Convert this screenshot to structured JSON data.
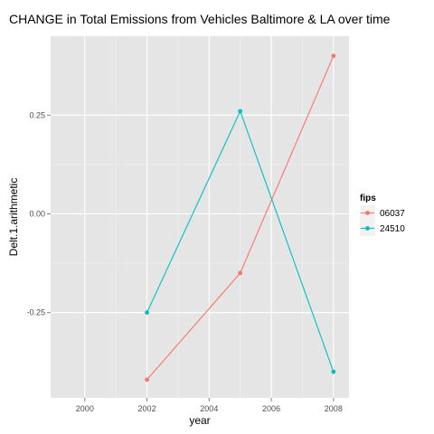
{
  "chart_data": {
    "type": "line",
    "title": "CHANGE in Total Emissions from Vehicles Baltimore & LA over time",
    "xlabel": "year",
    "ylabel": "Delt.1.arithmetic",
    "x": [
      2002,
      2005,
      2008
    ],
    "xlim": [
      1998.9,
      2008.5
    ],
    "ylim": [
      -0.466,
      0.45
    ],
    "x_ticks": [
      2000,
      2002,
      2004,
      2006,
      2008
    ],
    "y_ticks": [
      -0.25,
      0,
      0.25
    ],
    "y_tick_labels": [
      "-0.25",
      "0.00",
      "0.25"
    ],
    "grid": true,
    "legend": {
      "title": "fips",
      "placement": "right"
    },
    "series": [
      {
        "name": "06037",
        "color": "#F8766D",
        "values": [
          -0.42,
          -0.15,
          0.4
        ]
      },
      {
        "name": "24510",
        "color": "#00BFC4",
        "values": [
          -0.25,
          0.26,
          -0.4
        ]
      }
    ]
  }
}
